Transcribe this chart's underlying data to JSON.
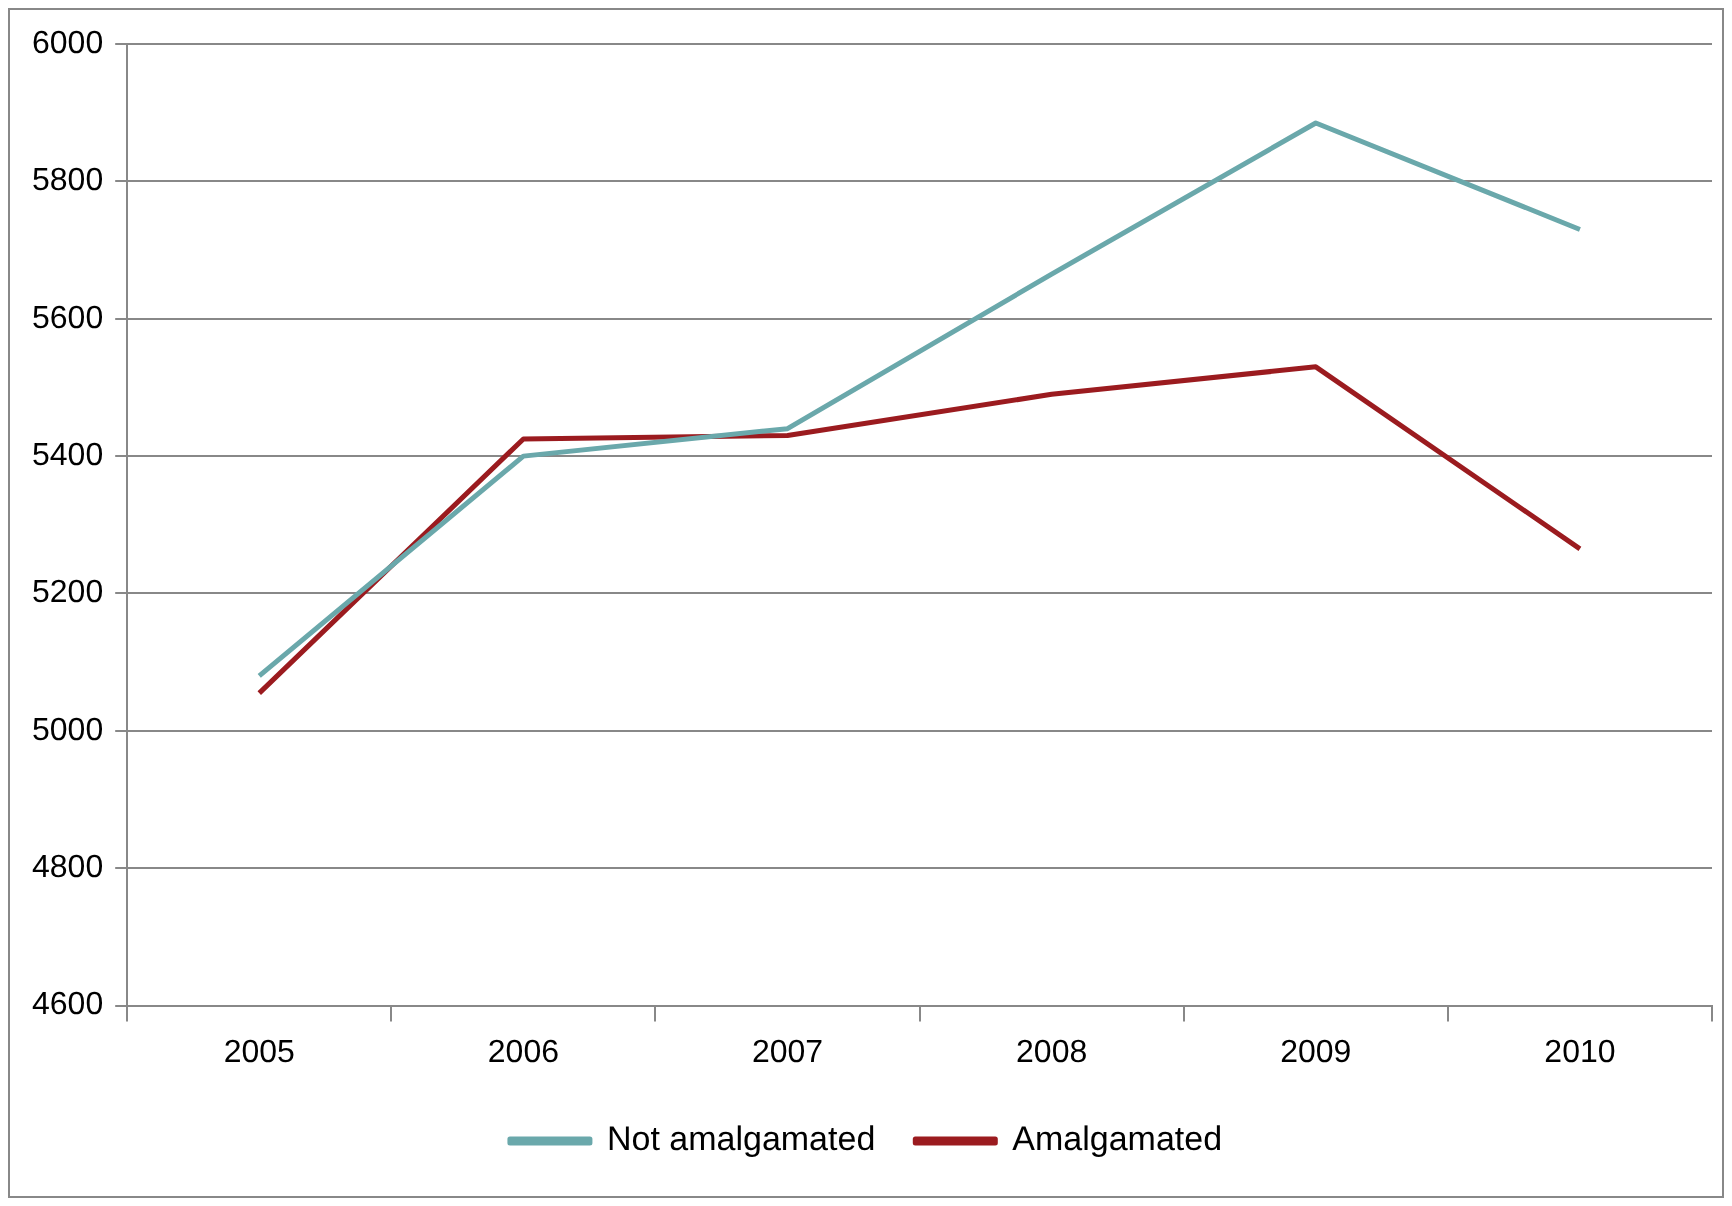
{
  "chart_data": {
    "type": "line",
    "categories": [
      "2005",
      "2006",
      "2007",
      "2008",
      "2009",
      "2010"
    ],
    "series": [
      {
        "name": "Not amalgamated",
        "color": "#6aa8ab",
        "values": [
          5080,
          5400,
          5440,
          5665,
          5885,
          5730
        ]
      },
      {
        "name": "Amalgamated",
        "color": "#9b1b1f",
        "values": [
          5055,
          5425,
          5430,
          5490,
          5530,
          5265
        ]
      }
    ],
    "ylim": [
      4600,
      6000
    ],
    "yticks": [
      4600,
      4800,
      5000,
      5200,
      5400,
      5600,
      5800,
      6000
    ],
    "grid": "y",
    "legend": "bottom",
    "marker": "none",
    "line_style": "solid"
  }
}
